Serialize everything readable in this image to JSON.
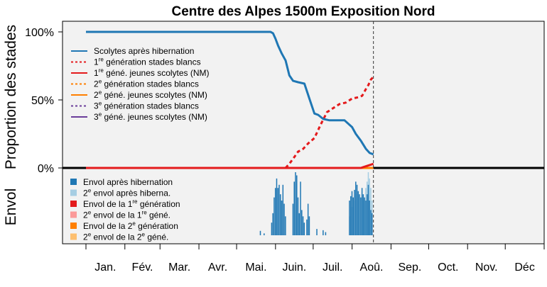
{
  "chart_data": {
    "type": "line",
    "title": "Centre des Alpes 1500m Exposition Nord",
    "ylabel": "Proportion des stades",
    "ylabel_lower": "Envol",
    "y_ticks": [
      "100%",
      "50%",
      "0%"
    ],
    "ylim": [
      0,
      1
    ],
    "months": [
      "Jan.",
      "Fév.",
      "Mar.",
      "Avr.",
      "Mai.",
      "Juin.",
      "Juil.",
      "Aoû.",
      "Sep.",
      "Oct.",
      "Nov.",
      "Déc"
    ],
    "x_unit": "day of year",
    "current_day": 230,
    "grid": false,
    "series": [
      {
        "name_parts": [
          "Scolytes après hibernation"
        ],
        "color": "#1f77b4",
        "dash": "solid",
        "x": [
          1,
          100,
          148,
          150,
          152,
          154,
          157,
          160,
          163,
          166,
          170,
          175,
          179,
          183,
          186,
          190,
          195,
          200,
          207,
          213,
          216,
          220,
          224,
          227,
          230
        ],
        "y": [
          1.0,
          1.0,
          1.0,
          0.99,
          0.95,
          0.9,
          0.84,
          0.79,
          0.68,
          0.64,
          0.63,
          0.62,
          0.51,
          0.4,
          0.39,
          0.36,
          0.35,
          0.35,
          0.35,
          0.3,
          0.25,
          0.2,
          0.14,
          0.11,
          0.1
        ]
      },
      {
        "name_parts": [
          "1",
          "re",
          " génération stades blancs"
        ],
        "color": "#e41a1c",
        "dash": "dotted",
        "x": [
          160,
          163,
          167,
          170,
          174,
          178,
          183,
          188,
          193,
          198,
          203,
          208,
          213,
          218,
          221,
          224,
          226,
          228,
          230
        ],
        "y": [
          0.0,
          0.03,
          0.08,
          0.12,
          0.14,
          0.18,
          0.22,
          0.32,
          0.41,
          0.44,
          0.47,
          0.48,
          0.51,
          0.52,
          0.53,
          0.58,
          0.61,
          0.65,
          0.67
        ]
      },
      {
        "name_parts": [
          "1",
          "re",
          " géné. jeunes scolytes (NM)"
        ],
        "color": "#e41a1c",
        "dash": "solid",
        "x": [
          1,
          220,
          225,
          230
        ],
        "y": [
          0.0,
          0.0,
          0.015,
          0.03
        ]
      },
      {
        "name_parts": [
          "2",
          "e",
          " génération stades blancs"
        ],
        "color": "#ff7f00",
        "dash": "dotted",
        "x": [
          1,
          230
        ],
        "y": [
          0.0,
          0.0
        ]
      },
      {
        "name_parts": [
          "2",
          "e",
          " géné. jeunes scolytes (NM)"
        ],
        "color": "#ff7f00",
        "dash": "solid",
        "x": [
          1,
          230
        ],
        "y": [
          0.0,
          0.0
        ]
      },
      {
        "name_parts": [
          "3",
          "e",
          " génération stades blancs"
        ],
        "color": "#6a3d9a",
        "dash": "dotted",
        "x": [
          1,
          230
        ],
        "y": [
          0.0,
          0.0
        ]
      },
      {
        "name_parts": [
          "3",
          "e",
          " géné. jeunes scolytes (NM)"
        ],
        "color": "#6a3d9a",
        "dash": "solid",
        "x": [
          1,
          230
        ],
        "y": [
          0.0,
          0.0
        ]
      }
    ],
    "flight_legend": [
      {
        "name_parts": [
          "Envol après hibernation"
        ],
        "color": "#1f77b4"
      },
      {
        "name_parts": [
          "2",
          "e",
          " envol après hiberna."
        ],
        "color": "#a6cee3"
      },
      {
        "name_parts": [
          "Envol de la 1",
          "re",
          " génération"
        ],
        "color": "#e31a1c"
      },
      {
        "name_parts": [
          "2",
          "e",
          " envol de la 1",
          "re",
          " géné."
        ],
        "color": "#fb9a99"
      },
      {
        "name_parts": [
          "Envol de la 2",
          "e",
          " génération"
        ],
        "color": "#ff7f00"
      },
      {
        "name_parts": [
          "2",
          "e",
          " envol de la 2",
          "e",
          " géné."
        ],
        "color": "#fdbf6f"
      }
    ],
    "flight_bars": {
      "note": "relative flight intensity per day, 0-1",
      "primary_color": "#1f77b4",
      "secondary_color": "#a6cee3",
      "primary": [
        [
          140,
          0.07
        ],
        [
          143,
          0.03
        ],
        [
          149,
          0.2
        ],
        [
          150,
          0.35
        ],
        [
          151,
          0.6
        ],
        [
          152,
          0.75
        ],
        [
          153,
          0.9
        ],
        [
          154,
          0.75
        ],
        [
          155,
          0.8
        ],
        [
          156,
          0.65
        ],
        [
          157,
          0.55
        ],
        [
          158,
          0.8
        ],
        [
          159,
          0.5
        ],
        [
          160,
          0.3
        ],
        [
          166,
          0.5
        ],
        [
          167,
          0.85
        ],
        [
          168,
          1.0
        ],
        [
          169,
          0.95
        ],
        [
          170,
          0.6
        ],
        [
          171,
          0.35
        ],
        [
          172,
          0.85
        ],
        [
          173,
          0.4
        ],
        [
          174,
          0.3
        ],
        [
          175,
          0.2
        ],
        [
          177,
          0.25
        ],
        [
          178,
          0.5
        ],
        [
          179,
          0.3
        ],
        [
          185,
          0.1
        ],
        [
          190,
          0.08
        ],
        [
          192,
          0.05
        ],
        [
          211,
          0.55
        ],
        [
          212,
          0.62
        ],
        [
          213,
          0.7
        ],
        [
          214,
          0.6
        ],
        [
          215,
          0.72
        ],
        [
          216,
          0.85
        ],
        [
          217,
          0.8
        ],
        [
          218,
          0.7
        ],
        [
          219,
          0.65
        ],
        [
          220,
          0.6
        ],
        [
          221,
          0.75
        ],
        [
          222,
          0.65
        ],
        [
          223,
          0.6
        ],
        [
          224,
          0.55
        ],
        [
          225,
          0.65
        ],
        [
          226,
          0.8
        ],
        [
          227,
          0.55
        ],
        [
          228,
          0.4
        ],
        [
          229,
          0.35
        ]
      ],
      "secondary": [
        [
          168,
          0.4
        ],
        [
          169,
          0.3
        ],
        [
          211,
          0.3
        ],
        [
          213,
          0.45
        ],
        [
          215,
          0.55
        ],
        [
          217,
          0.65
        ],
        [
          219,
          0.6
        ],
        [
          221,
          0.7
        ],
        [
          222,
          0.6
        ],
        [
          223,
          0.55
        ],
        [
          224,
          0.75
        ],
        [
          225,
          0.85
        ],
        [
          226,
          1.0
        ],
        [
          227,
          0.9
        ],
        [
          228,
          0.75
        ],
        [
          229,
          0.55
        ]
      ]
    }
  }
}
